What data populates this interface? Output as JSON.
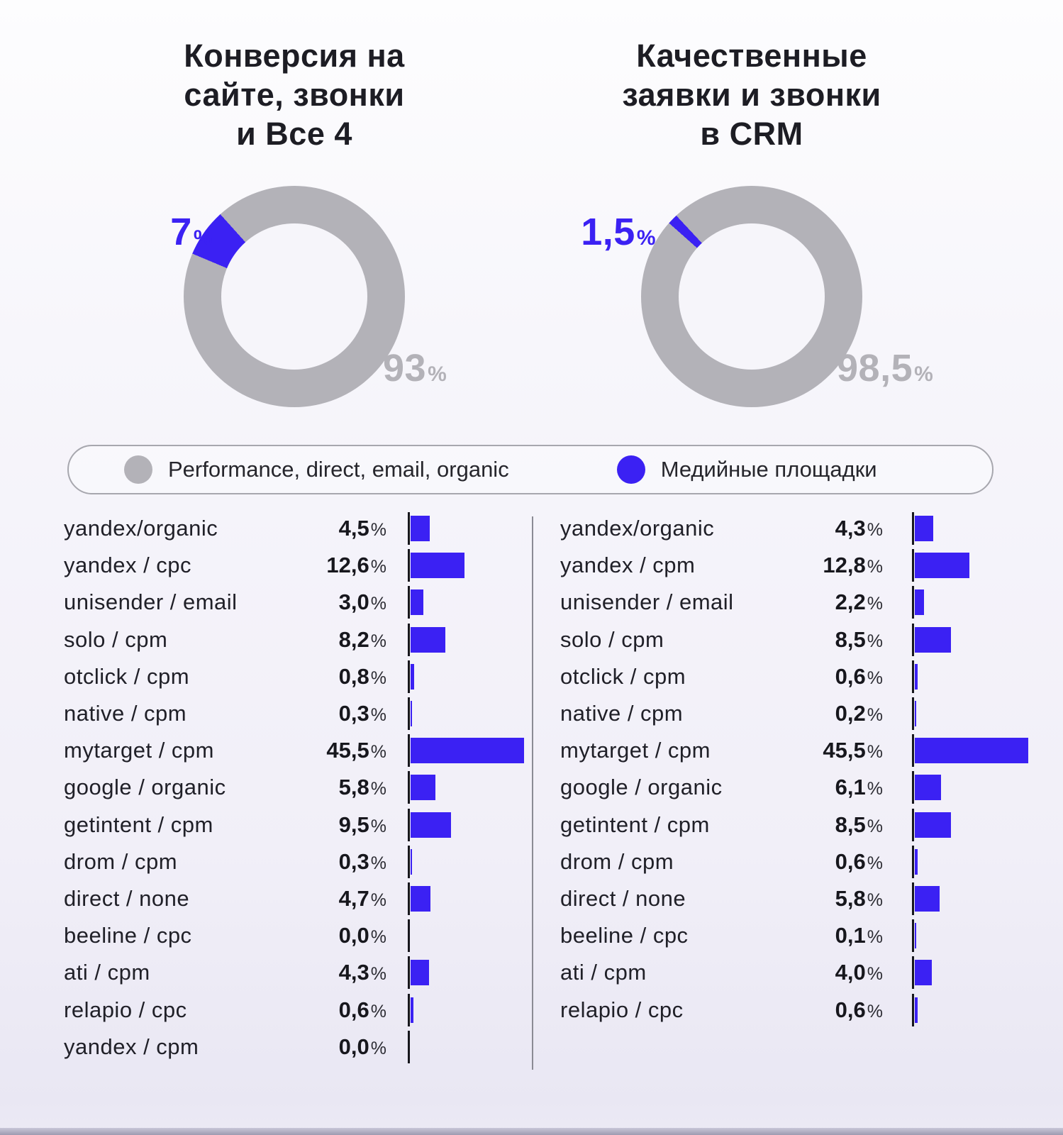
{
  "palette": {
    "blue": "#3b21f3",
    "gray": "#b3b2b8",
    "title_text": "#1d1d24",
    "axis": "#17171d",
    "divider": "#8b8b94",
    "legend_border": "#a7a7ae"
  },
  "percent_sign": "%",
  "titles": {
    "left": "Конверсия на\nсайте, звонки\nи Все 4",
    "right": "Качественные\nзаявки и звонки\nв CRM"
  },
  "legend": {
    "items": [
      {
        "label": "Performance, direct, email, organic",
        "color": "#b3b2b8"
      },
      {
        "label": "Медийные площадки",
        "color": "#3b21f3"
      }
    ]
  },
  "chart_data": [
    {
      "type": "pie",
      "donut": true,
      "title": "Конверсия на сайте, звонки и Все 4",
      "slices": [
        {
          "label": "Медийные площадки",
          "value": 7,
          "display": "7",
          "color": "#3b21f3"
        },
        {
          "label": "Performance, direct, email, organic",
          "value": 93,
          "display": "93",
          "color": "#b3b2b8"
        }
      ]
    },
    {
      "type": "pie",
      "donut": true,
      "title": "Качественные заявки и звонки в CRM",
      "slices": [
        {
          "label": "Медийные площадки",
          "value": 1.5,
          "display": "1,5",
          "color": "#3b21f3"
        },
        {
          "label": "Performance, direct, email, organic",
          "value": 98.5,
          "display": "98,5",
          "color": "#b3b2b8"
        }
      ]
    },
    {
      "type": "bar",
      "orientation": "horizontal",
      "title": "Конверсия на сайте, звонки и Все 4",
      "unit": "%",
      "rows": [
        {
          "label": "yandex/organic",
          "value": 4.5,
          "display": "4,5"
        },
        {
          "label": "yandex / cpc",
          "value": 12.6,
          "display": "12,6"
        },
        {
          "label": "unisender / email",
          "value": 3.0,
          "display": "3,0"
        },
        {
          "label": "solo / cpm",
          "value": 8.2,
          "display": "8,2"
        },
        {
          "label": "otclick / cpm",
          "value": 0.8,
          "display": "0,8"
        },
        {
          "label": "native / cpm",
          "value": 0.3,
          "display": "0,3"
        },
        {
          "label": "mytarget / cpm",
          "value": 45.5,
          "display": "45,5"
        },
        {
          "label": "google / organic",
          "value": 5.8,
          "display": "5,8"
        },
        {
          "label": "getintent / cpm",
          "value": 9.5,
          "display": "9,5"
        },
        {
          "label": "drom / cpm",
          "value": 0.3,
          "display": "0,3"
        },
        {
          "label": "direct / none",
          "value": 4.7,
          "display": "4,7"
        },
        {
          "label": "beeline / cpc",
          "value": 0.0,
          "display": "0,0"
        },
        {
          "label": "ati / cpm",
          "value": 4.3,
          "display": "4,3"
        },
        {
          "label": "relapio / cpc",
          "value": 0.6,
          "display": "0,6"
        },
        {
          "label": "yandex / cpm",
          "value": 0.0,
          "display": "0,0"
        }
      ]
    },
    {
      "type": "bar",
      "orientation": "horizontal",
      "title": "Качественные заявки и звонки в CRM",
      "unit": "%",
      "rows": [
        {
          "label": "yandex/organic",
          "value": 4.3,
          "display": "4,3"
        },
        {
          "label": "yandex / cpm",
          "value": 12.8,
          "display": "12,8"
        },
        {
          "label": "unisender / email",
          "value": 2.2,
          "display": "2,2"
        },
        {
          "label": "solo / cpm",
          "value": 8.5,
          "display": "8,5"
        },
        {
          "label": "otclick / cpm",
          "value": 0.6,
          "display": "0,6"
        },
        {
          "label": "native / cpm",
          "value": 0.2,
          "display": "0,2"
        },
        {
          "label": "mytarget / cpm",
          "value": 45.5,
          "display": "45,5"
        },
        {
          "label": "google / organic",
          "value": 6.1,
          "display": "6,1"
        },
        {
          "label": "getintent / cpm",
          "value": 8.5,
          "display": "8,5"
        },
        {
          "label": "drom / cpm",
          "value": 0.6,
          "display": "0,6"
        },
        {
          "label": "direct / none",
          "value": 5.8,
          "display": "5,8"
        },
        {
          "label": "beeline / cpc",
          "value": 0.1,
          "display": "0,1"
        },
        {
          "label": "ati / cpm",
          "value": 4.0,
          "display": "4,0"
        },
        {
          "label": "relapio / cpc",
          "value": 0.6,
          "display": "0,6"
        }
      ]
    }
  ]
}
